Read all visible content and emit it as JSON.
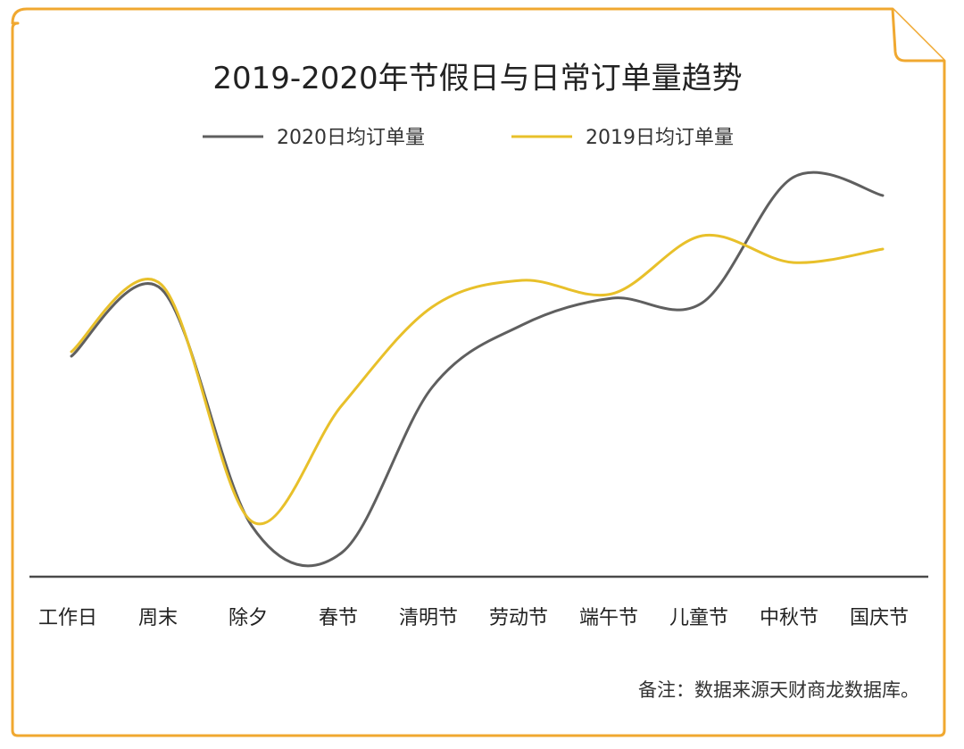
{
  "colors": {
    "frame": "#f0a830",
    "background": "#ffffff",
    "series_2020": "#5f5f5f",
    "series_2019": "#e8c02a",
    "axis": "#4a4a4a",
    "text": "#222222"
  },
  "note": "备注：数据来源天财商龙数据库。",
  "chart_data": {
    "type": "line",
    "title": "2019-2020年节假日与日常订单量趋势",
    "xlabel": "",
    "ylabel": "",
    "categories": [
      "工作日",
      "周末",
      "除夕",
      "春节",
      "清明节",
      "劳动节",
      "端午节",
      "儿童节",
      "中秋节",
      "国庆节"
    ],
    "series": [
      {
        "name": "2020日均订单量",
        "color": "#5f5f5f",
        "values": [
          49,
          64,
          11,
          5,
          42,
          56,
          62,
          61,
          89,
          85
        ]
      },
      {
        "name": "2019日均订单量",
        "color": "#e8c02a",
        "values": [
          50,
          65,
          12,
          38,
          60,
          66,
          63,
          76,
          70,
          73
        ]
      }
    ],
    "ylim": [
      0,
      100
    ],
    "smooth": true,
    "grid": false,
    "y_axis_visible": false,
    "legend_position": "top-center"
  }
}
